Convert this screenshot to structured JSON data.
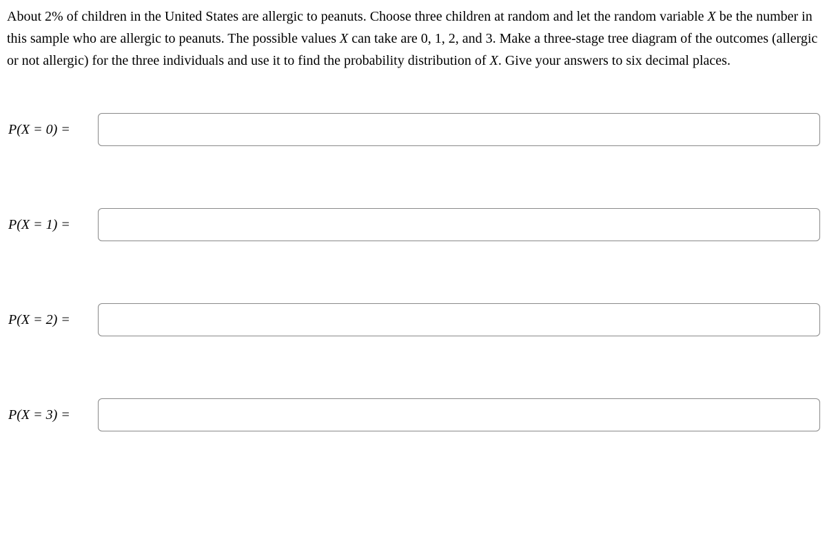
{
  "problem": {
    "text_part1": "About 2% of children in the United States are allergic to peanuts. Choose three children at random and let the random variable ",
    "var_X": "X",
    "text_part2": " be the number in this sample who are allergic to peanuts. The possible values ",
    "var_X2": "X",
    "text_part3": " can take are 0, 1, 2, and 3. Make a three-stage tree diagram of the outcomes (allergic or not allergic) for the three individuals and use it to find the probability distribution of ",
    "var_X3": "X",
    "text_part4": ". Give your answers to six decimal places."
  },
  "answers": [
    {
      "label": "P(X = 0) =",
      "value": ""
    },
    {
      "label": "P(X = 1) =",
      "value": ""
    },
    {
      "label": "P(X = 2) =",
      "value": ""
    },
    {
      "label": "P(X = 3) =",
      "value": ""
    }
  ]
}
